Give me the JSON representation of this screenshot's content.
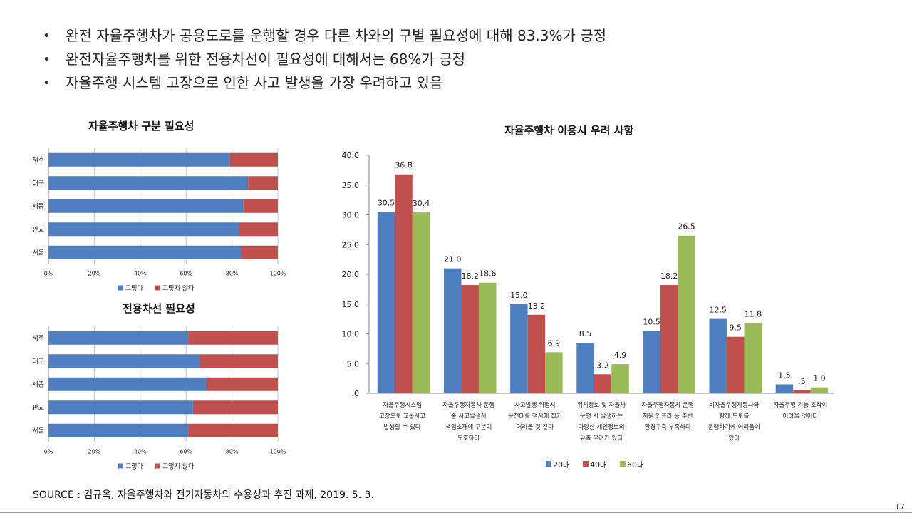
{
  "bullets": [
    "완전 자율주행차가 공용도로를 운행할 경우 다른 차와의 구별 필요성에 대해 83.3%가 긍정",
    "완전자율주행차를 위한 전용차선이 필요성에 대해서는 68%가 긍정",
    "자율주행 시스템 고장으로 인한 사고 발생을 가장 우려하고 있음"
  ],
  "source": "SOURCE : 김규옥, 자율주행차와 전기자동차의 수용성과 추진 과제, 2019. 5. 3.",
  "page_number": "17",
  "colors": {
    "blue": "#4f7ec1",
    "red": "#c0504d",
    "green": "#9bbb59",
    "grid": "#c8c8c8"
  },
  "chart_data": [
    {
      "type": "bar",
      "orientation": "horizontal",
      "stacked": true,
      "title": "자율주행차 구분 필요성",
      "categories": [
        "제주",
        "대구",
        "세종",
        "판교",
        "서울"
      ],
      "series": [
        {
          "name": "그렇다",
          "values": [
            79,
            87,
            85,
            83,
            84
          ]
        },
        {
          "name": "그렇지 않다",
          "values": [
            21,
            13,
            15,
            17,
            16
          ]
        }
      ],
      "xlim": [
        0,
        100
      ],
      "xticks": [
        "0%",
        "20%",
        "40%",
        "60%",
        "80%",
        "100%"
      ],
      "legend": "bottom"
    },
    {
      "type": "bar",
      "orientation": "horizontal",
      "stacked": true,
      "title": "전용차선 필요성",
      "categories": [
        "제주",
        "대구",
        "세종",
        "판교",
        "서울"
      ],
      "series": [
        {
          "name": "그렇다",
          "values": [
            61,
            66,
            69,
            63,
            61
          ]
        },
        {
          "name": "그렇지 않다",
          "values": [
            39,
            34,
            31,
            37,
            39
          ]
        }
      ],
      "xlim": [
        0,
        100
      ],
      "xticks": [
        "0%",
        "20%",
        "40%",
        "60%",
        "80%",
        "100%"
      ],
      "legend": "bottom"
    },
    {
      "type": "bar",
      "title": "자율주행차 이용시 우려 사항",
      "categories": [
        [
          "자율주행시스템",
          "고장으로 교통사고",
          "발생할 수 있다"
        ],
        [
          "자율주행자동차 운행",
          "중 사고발생시",
          "책임소재에 구분이",
          "모호하다"
        ],
        [
          "사고발생 위험시",
          "운전대를 적시에 잡기",
          "어려울 것 같다"
        ],
        [
          "위치정보 및 자율차",
          "운행 시 발생하는",
          "다양한 개인정보의",
          "유출 우려가 있다"
        ],
        [
          "자율주행자동차 운행",
          "지원 인프라 등 주변",
          "환경구축 부족하다"
        ],
        [
          "비자율주행자동차와",
          "함께 도로를",
          "운행하기에 어려움이",
          "있다"
        ],
        [
          "자율주행 기능 조작이",
          "어려울 것이다"
        ]
      ],
      "series": [
        {
          "name": "20대",
          "values": [
            30.5,
            21.0,
            15.0,
            8.5,
            10.5,
            12.5,
            1.5
          ],
          "labels": [
            "30.5",
            "21.0",
            "15.0",
            "8.5",
            "10.5",
            "12.5",
            "1.5"
          ]
        },
        {
          "name": "40대",
          "values": [
            36.8,
            18.2,
            13.2,
            3.2,
            18.2,
            9.5,
            0.5
          ],
          "labels": [
            "36.8",
            "18.2",
            "13.2",
            "3.2",
            "18.2",
            "9.5",
            ".5"
          ]
        },
        {
          "name": "60대",
          "values": [
            30.4,
            18.6,
            6.9,
            4.9,
            26.5,
            11.8,
            1.0
          ],
          "labels": [
            "30.4",
            "18.6",
            "6.9",
            "4.9",
            "26.5",
            "11.8",
            "1.0"
          ]
        }
      ],
      "ylim": [
        0,
        40
      ],
      "yticks": [
        "40.0",
        "35.0",
        "30.0",
        "25.0",
        "20.0",
        "15.0",
        "10.0",
        "5.0",
        ".0"
      ],
      "legend": "bottom"
    }
  ]
}
